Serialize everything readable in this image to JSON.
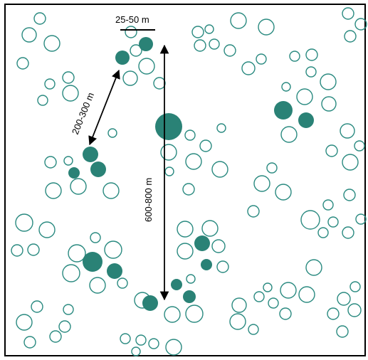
{
  "labels": {
    "patch_diameter": "25-50 m",
    "neighbour_spacing": "200-300 m",
    "long_distance": "600-800 m"
  },
  "colors": {
    "outline": "#2a8a80",
    "filled": "#2a8276",
    "frame": "#000000",
    "background": "#ffffff"
  }
}
